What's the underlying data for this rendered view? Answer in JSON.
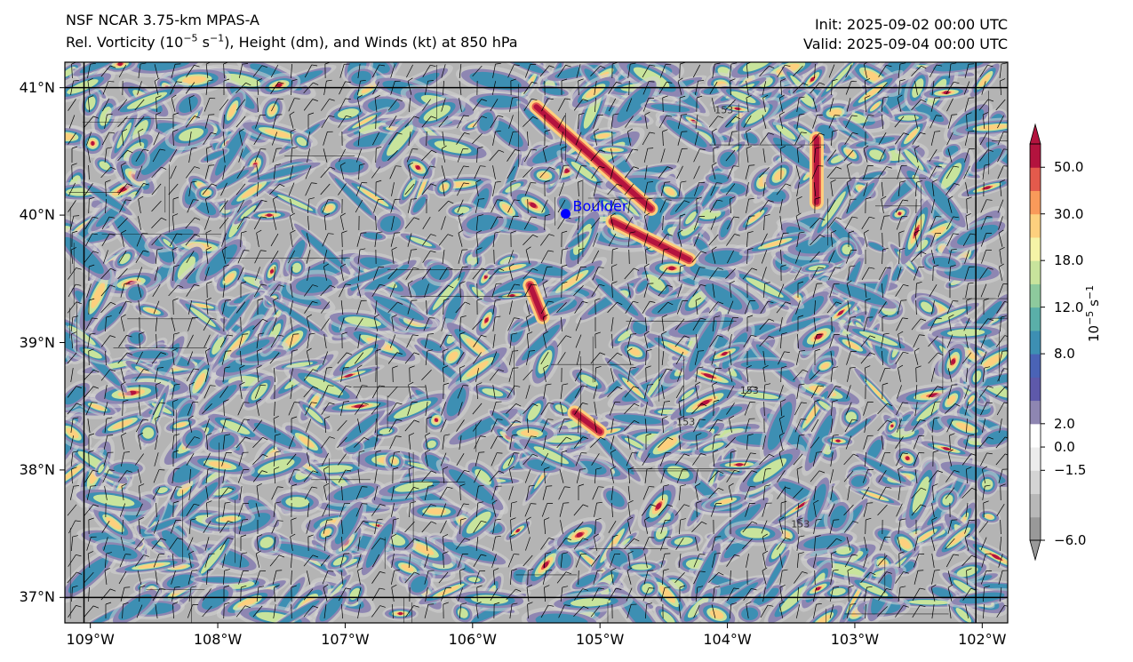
{
  "title": {
    "model": "NSF NCAR 3.75-km MPAS-A",
    "field_prefix": "Rel. Vorticity (10",
    "field_exp": "−5",
    "field_unit_mid": " s",
    "field_unit_exp": "−1",
    "field_suffix": "), Height (dm), and Winds (kt) at 850 hPa",
    "init": "Init: 2025-09-02 00:00 UTC",
    "valid": "Valid: 2025-09-04 00:00 UTC"
  },
  "map": {
    "lon_range": [
      -109.2,
      -101.8
    ],
    "lat_range": [
      36.8,
      41.2
    ],
    "lat_ticks": [
      {
        "value": 41,
        "label": "41°N"
      },
      {
        "value": 40,
        "label": "40°N"
      },
      {
        "value": 39,
        "label": "39°N"
      },
      {
        "value": 38,
        "label": "38°N"
      },
      {
        "value": 37,
        "label": "37°N"
      }
    ],
    "lon_ticks": [
      {
        "value": -109,
        "label": "109°W"
      },
      {
        "value": -108,
        "label": "108°W"
      },
      {
        "value": -107,
        "label": "107°W"
      },
      {
        "value": -106,
        "label": "106°W"
      },
      {
        "value": -105,
        "label": "105°W"
      },
      {
        "value": -104,
        "label": "104°W"
      },
      {
        "value": -103,
        "label": "103°W"
      },
      {
        "value": -102,
        "label": "102°W"
      }
    ],
    "city": {
      "name": "Boulder",
      "lon": -105.27,
      "lat": 40.01,
      "color": "#0000ff"
    },
    "height_contour_labels": [
      {
        "text": "153",
        "lon": -104.1,
        "lat": 40.8
      },
      {
        "text": "153",
        "lon": -104.4,
        "lat": 38.35
      },
      {
        "text": "153",
        "lon": -103.9,
        "lat": 38.6
      },
      {
        "text": "153",
        "lon": -103.5,
        "lat": 37.55
      }
    ],
    "colors": {
      "background": "#b4b4b4",
      "border": "#000000"
    }
  },
  "colorbar": {
    "label_prefix": "10",
    "label_exp": "−5",
    "label_mid": " s",
    "label_exp2": "−1",
    "levels": [
      -6.0,
      -4.5,
      -3.0,
      -1.5,
      0.0,
      2.0,
      4.0,
      6.0,
      8.0,
      10.0,
      12.0,
      15.0,
      18.0,
      24.0,
      30.0,
      40.0,
      50.0
    ],
    "colors": [
      "#999999",
      "#b8b8b8",
      "#d4d4d4",
      "#ececec",
      "#ffffff",
      "#8e86b2",
      "#5e59aa",
      "#4a63b6",
      "#3d8fb3",
      "#5aafa9",
      "#8dca9d",
      "#c8e49c",
      "#f5f3a7",
      "#fdd07e",
      "#f99a5a",
      "#e45a4c",
      "#b3133e"
    ],
    "tick_labels": [
      {
        "value": 50.0,
        "label": "50.0"
      },
      {
        "value": 30.0,
        "label": "30.0"
      },
      {
        "value": 18.0,
        "label": "18.0"
      },
      {
        "value": 12.0,
        "label": "12.0"
      },
      {
        "value": 8.0,
        "label": "8.0"
      },
      {
        "value": 2.0,
        "label": "2.0"
      },
      {
        "value": 0.0,
        "label": "0.0"
      },
      {
        "value": -1.5,
        "label": "−1.5"
      },
      {
        "value": -6.0,
        "label": "−6.0"
      }
    ]
  }
}
